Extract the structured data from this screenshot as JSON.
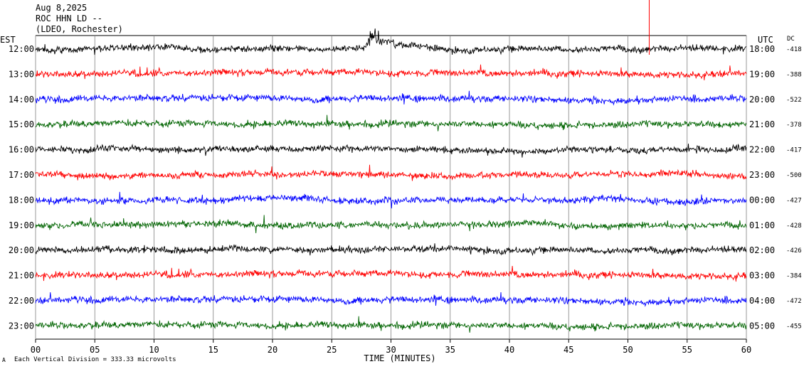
{
  "header": {
    "date": "Aug 8,2025",
    "station": "ROC HHN LD --",
    "network": "(LDEO, Rochester)"
  },
  "left_axis_title": "EST",
  "right_axis_title": "UTC",
  "dc_title": "DC",
  "xlabel": "TIME (MINUTES)",
  "footer_note": "Each Vertical Division =  333.33 microvolts",
  "corner_mark": "A",
  "colors": {
    "black": "#000000",
    "red": "#ff0000",
    "blue": "#0000ff",
    "green": "#006400",
    "grid": "#808080"
  },
  "chart_data": {
    "type": "line",
    "x_range_minutes": [
      0,
      60
    ],
    "x_ticks": [
      "00",
      "05",
      "10",
      "15",
      "20",
      "25",
      "30",
      "35",
      "40",
      "45",
      "50",
      "55",
      "60"
    ],
    "vertical_grid": true,
    "trace_color_cycle": [
      "black",
      "red",
      "blue",
      "green"
    ],
    "rows": [
      {
        "est": "12:00",
        "utc": "18:00",
        "dc": "-418"
      },
      {
        "est": "13:00",
        "utc": "19:00",
        "dc": "-388"
      },
      {
        "est": "14:00",
        "utc": "20:00",
        "dc": "-522"
      },
      {
        "est": "15:00",
        "utc": "21:00",
        "dc": "-378"
      },
      {
        "est": "16:00",
        "utc": "22:00",
        "dc": "-417"
      },
      {
        "est": "17:00",
        "utc": "23:00",
        "dc": "-500"
      },
      {
        "est": "18:00",
        "utc": "00:00",
        "dc": "-427"
      },
      {
        "est": "19:00",
        "utc": "01:00",
        "dc": "-428"
      },
      {
        "est": "20:00",
        "utc": "02:00",
        "dc": "-426"
      },
      {
        "est": "21:00",
        "utc": "03:00",
        "dc": "-384"
      },
      {
        "est": "22:00",
        "utc": "04:00",
        "dc": "-472"
      },
      {
        "est": "23:00",
        "utc": "05:00",
        "dc": "-455"
      }
    ],
    "events": [
      {
        "row": 0,
        "minute": 28.3,
        "description_shown": "large signal spike"
      },
      {
        "row": 0,
        "minute": 51.8,
        "description_shown": "vertical marker line"
      }
    ]
  }
}
